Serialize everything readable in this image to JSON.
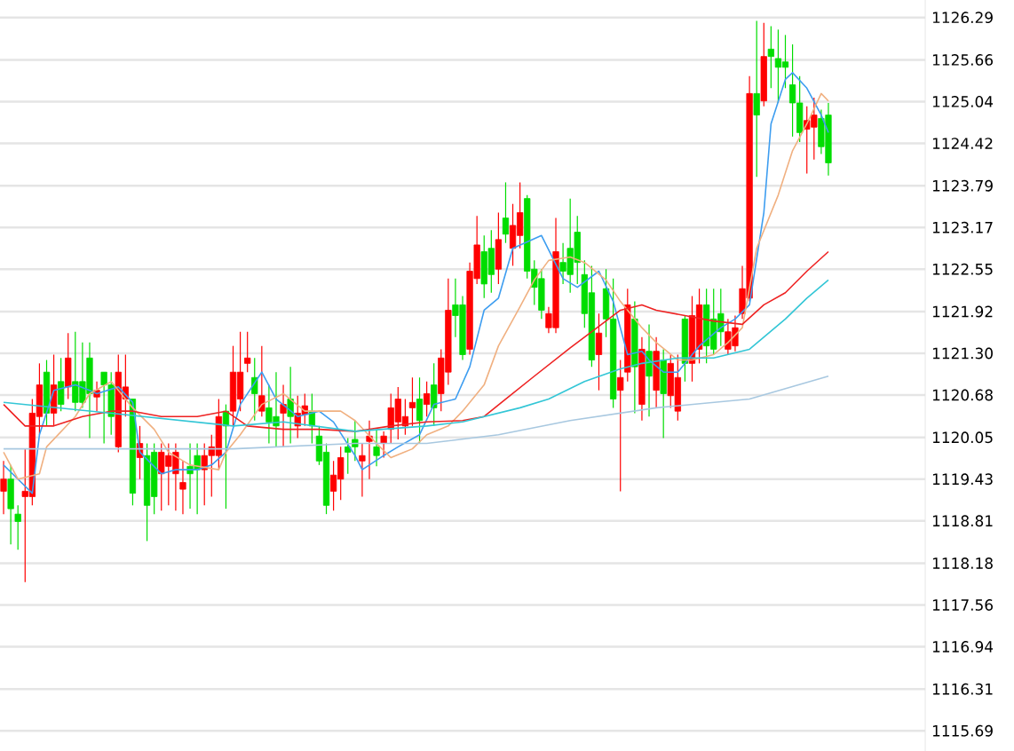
{
  "chart_data": {
    "type": "candlestick",
    "categories": [
      null,
      null,
      null,
      null,
      null,
      null,
      null,
      null,
      null,
      null,
      null,
      null,
      null,
      null,
      null,
      null,
      null,
      null,
      null,
      null,
      null,
      null,
      null,
      null,
      null,
      null,
      null,
      null,
      null,
      null,
      null,
      null,
      null,
      null,
      null,
      null,
      null,
      null,
      null,
      null,
      null,
      null,
      null,
      null,
      null,
      null,
      null,
      null,
      null,
      null,
      null,
      null,
      null,
      null,
      null,
      null,
      null,
      null,
      null,
      null,
      null,
      null,
      null,
      null,
      null,
      null,
      null,
      null,
      null,
      null,
      null,
      null,
      null,
      null,
      null,
      null,
      null,
      null,
      null,
      null,
      null,
      null,
      null,
      null,
      null,
      null,
      null,
      null,
      null,
      null,
      null,
      null,
      null,
      null,
      null,
      null,
      null,
      null,
      null,
      null,
      null,
      null,
      null,
      null,
      null,
      null,
      null,
      null,
      null,
      null,
      null,
      null,
      null,
      null,
      null,
      null,
      null,
      null,
      null,
      null,
      null,
      null,
      null,
      null,
      null,
      null,
      null,
      null,
      null
    ],
    "ohlc": [
      [
        1119.25,
        1119.7,
        1118.91,
        1119.43
      ],
      [
        1119.43,
        1119.64,
        1118.46,
        1118.99
      ],
      [
        1118.91,
        1119.04,
        1118.38,
        1118.8
      ],
      [
        1119.17,
        1119.88,
        1117.9,
        1119.25
      ],
      [
        1119.17,
        1120.62,
        1119.04,
        1120.41
      ],
      [
        1120.36,
        1121.15,
        1120.09,
        1120.83
      ],
      [
        1121.02,
        1121.2,
        1120.22,
        1120.41
      ],
      [
        1120.41,
        1121.28,
        1120.22,
        1120.83
      ],
      [
        1120.88,
        1121.23,
        1120.44,
        1120.54
      ],
      [
        1120.8,
        1121.6,
        1120.62,
        1121.23
      ],
      [
        1120.88,
        1121.62,
        1120.44,
        1120.57
      ],
      [
        1120.88,
        1121.46,
        1120.49,
        1120.57
      ],
      [
        1121.23,
        1121.46,
        1120.04,
        1120.7
      ],
      [
        1120.65,
        1120.88,
        1120.44,
        1120.75
      ],
      [
        1121.02,
        1121.02,
        1119.96,
        1120.83
      ],
      [
        1120.83,
        1121.02,
        1120.09,
        1120.36
      ],
      [
        1119.91,
        1121.28,
        1119.83,
        1121.02
      ],
      [
        1120.62,
        1121.28,
        1120.36,
        1120.8
      ],
      [
        1120.62,
        1120.62,
        1119.04,
        1119.22
      ],
      [
        1119.75,
        1120.22,
        1119.43,
        1119.96
      ],
      [
        1119.78,
        1119.96,
        1118.51,
        1119.04
      ],
      [
        1119.83,
        1119.96,
        1118.91,
        1119.17
      ],
      [
        1119.51,
        1119.96,
        1118.96,
        1119.83
      ],
      [
        1119.62,
        1119.96,
        1119.04,
        1119.78
      ],
      [
        1119.51,
        1119.96,
        1118.96,
        1119.83
      ],
      [
        1119.28,
        1119.7,
        1118.91,
        1119.38
      ],
      [
        1119.62,
        1119.96,
        1118.99,
        1119.51
      ],
      [
        1119.78,
        1119.96,
        1118.91,
        1119.57
      ],
      [
        1119.57,
        1119.96,
        1119.04,
        1119.78
      ],
      [
        1119.78,
        1120.09,
        1119.17,
        1119.91
      ],
      [
        1119.78,
        1120.62,
        1119.57,
        1120.36
      ],
      [
        1120.44,
        1120.54,
        1118.99,
        1120.22
      ],
      [
        1120.44,
        1121.41,
        1120.22,
        1121.02
      ],
      [
        1120.62,
        1121.62,
        1120.44,
        1121.02
      ],
      [
        1121.15,
        1121.62,
        1121.02,
        1121.23
      ],
      [
        1120.94,
        1121.23,
        1120.3,
        1120.7
      ],
      [
        1120.44,
        1121.41,
        1120.36,
        1120.67
      ],
      [
        1120.49,
        1120.83,
        1119.96,
        1120.28
      ],
      [
        1120.36,
        1121.02,
        1119.91,
        1120.22
      ],
      [
        1120.41,
        1120.83,
        1119.91,
        1120.54
      ],
      [
        1120.62,
        1121.1,
        1119.96,
        1120.36
      ],
      [
        1120.22,
        1120.67,
        1120.04,
        1120.41
      ],
      [
        1120.39,
        1120.7,
        1120.22,
        1120.52
      ],
      [
        1120.44,
        1120.7,
        1119.96,
        1120.22
      ],
      [
        1120.07,
        1120.22,
        1119.64,
        1119.7
      ],
      [
        1119.83,
        1119.96,
        1118.91,
        1119.04
      ],
      [
        1119.25,
        1119.7,
        1118.96,
        1119.49
      ],
      [
        1119.43,
        1119.91,
        1119.12,
        1119.75
      ],
      [
        1119.91,
        1120.04,
        1119.51,
        1119.83
      ],
      [
        1120.02,
        1120.3,
        1119.7,
        1119.91
      ],
      [
        1119.7,
        1119.96,
        1119.17,
        1119.78
      ],
      [
        1119.99,
        1120.3,
        1119.43,
        1120.07
      ],
      [
        1119.91,
        1120.17,
        1119.62,
        1119.78
      ],
      [
        1119.96,
        1120.14,
        1119.75,
        1120.07
      ],
      [
        1120.17,
        1120.7,
        1119.96,
        1120.49
      ],
      [
        1120.28,
        1120.8,
        1120.02,
        1120.62
      ],
      [
        1120.22,
        1120.62,
        1120.09,
        1120.36
      ],
      [
        1120.49,
        1120.94,
        1120.22,
        1120.57
      ],
      [
        1120.62,
        1120.94,
        1119.96,
        1120.3
      ],
      [
        1120.54,
        1120.88,
        1120.36,
        1120.7
      ],
      [
        1120.83,
        1121.15,
        1120.22,
        1120.49
      ],
      [
        1120.7,
        1121.36,
        1120.44,
        1121.23
      ],
      [
        1121.02,
        1122.41,
        1120.83,
        1121.94
      ],
      [
        1122.02,
        1122.41,
        1121.54,
        1121.86
      ],
      [
        1122.02,
        1122.15,
        1121.2,
        1121.28
      ],
      [
        1121.36,
        1122.65,
        1121.28,
        1122.52
      ],
      [
        1122.41,
        1123.34,
        1122.33,
        1122.91
      ],
      [
        1122.81,
        1123.05,
        1122.12,
        1122.33
      ],
      [
        1122.86,
        1123.13,
        1122.2,
        1122.47
      ],
      [
        1122.55,
        1123.39,
        1122.33,
        1122.99
      ],
      [
        1123.31,
        1123.84,
        1122.94,
        1123.07
      ],
      [
        1122.86,
        1123.52,
        1122.6,
        1123.2
      ],
      [
        1123.05,
        1123.84,
        1122.86,
        1123.39
      ],
      [
        1123.6,
        1123.65,
        1122.41,
        1122.52
      ],
      [
        1122.55,
        1122.68,
        1122.02,
        1122.28
      ],
      [
        1122.41,
        1122.55,
        1121.81,
        1121.94
      ],
      [
        1121.68,
        1121.99,
        1121.6,
        1121.89
      ],
      [
        1121.68,
        1123.31,
        1121.6,
        1122.81
      ],
      [
        1122.65,
        1122.94,
        1122.33,
        1122.52
      ],
      [
        1122.86,
        1123.6,
        1122.2,
        1122.47
      ],
      [
        1123.1,
        1123.34,
        1122.33,
        1122.65
      ],
      [
        1122.47,
        1122.68,
        1121.68,
        1121.89
      ],
      [
        1122.2,
        1122.6,
        1121.1,
        1121.2
      ],
      [
        1121.28,
        1121.89,
        1120.75,
        1121.6
      ],
      [
        1122.26,
        1122.55,
        1121.54,
        1121.81
      ],
      [
        1121.81,
        1122.41,
        1120.49,
        1120.62
      ],
      [
        1120.75,
        1121.2,
        1119.25,
        1120.94
      ],
      [
        1121.02,
        1122.26,
        1120.88,
        1122.02
      ],
      [
        1121.81,
        1122.07,
        1120.41,
        1121.1
      ],
      [
        1120.54,
        1121.54,
        1120.3,
        1121.36
      ],
      [
        1121.33,
        1121.73,
        1120.36,
        1120.96
      ],
      [
        1120.75,
        1121.54,
        1120.49,
        1121.33
      ],
      [
        1121.2,
        1121.36,
        1120.04,
        1120.7
      ],
      [
        1120.67,
        1121.28,
        1120.49,
        1121.15
      ],
      [
        1120.44,
        1121.28,
        1120.3,
        1120.94
      ],
      [
        1121.81,
        1121.86,
        1120.88,
        1121.15
      ],
      [
        1121.15,
        1122.15,
        1120.88,
        1121.86
      ],
      [
        1121.36,
        1122.26,
        1121.15,
        1122.02
      ],
      [
        1122.02,
        1122.26,
        1121.15,
        1121.41
      ],
      [
        1121.81,
        1122.26,
        1121.28,
        1121.36
      ],
      [
        1121.89,
        1122.26,
        1121.41,
        1121.62
      ],
      [
        1121.36,
        1121.81,
        1121.28,
        1121.62
      ],
      [
        1121.41,
        1121.86,
        1121.33,
        1121.68
      ],
      [
        1121.89,
        1122.6,
        1121.81,
        1122.26
      ],
      [
        1122.12,
        1125.42,
        1122.07,
        1125.16
      ],
      [
        1125.16,
        1126.24,
        1123.92,
        1124.84
      ],
      [
        1125.05,
        1126.21,
        1124.97,
        1125.71
      ],
      [
        1125.82,
        1126.16,
        1125.24,
        1125.71
      ],
      [
        1125.68,
        1126.11,
        1125.02,
        1125.55
      ],
      [
        1125.63,
        1126.03,
        1125.24,
        1125.55
      ],
      [
        1125.29,
        1125.89,
        1124.52,
        1125.02
      ],
      [
        1125.02,
        1125.42,
        1124.44,
        1124.58
      ],
      [
        1124.63,
        1124.97,
        1123.97,
        1124.76
      ],
      [
        1124.66,
        1125.1,
        1124.18,
        1124.84
      ],
      [
        1124.79,
        1124.92,
        1124.26,
        1124.37
      ],
      [
        1124.84,
        1125.02,
        1123.94,
        1124.13
      ],
      null,
      null,
      null,
      null,
      null,
      null,
      null,
      null,
      null,
      null,
      null,
      null,
      null
    ],
    "colors": [
      "#ff0000",
      "#00dd00",
      "#00dd00",
      "#ff0000",
      "#ff0000",
      "#ff0000",
      "#00dd00",
      "#ff0000",
      "#00dd00",
      "#ff0000",
      "#00dd00",
      "#00dd00",
      "#00dd00",
      "#ff0000",
      "#00dd00",
      "#00dd00",
      "#ff0000",
      "#ff0000",
      "#00dd00",
      "#ff0000",
      "#00dd00",
      "#00dd00",
      "#ff0000",
      "#ff0000",
      "#ff0000",
      "#ff0000",
      "#00dd00",
      "#00dd00",
      "#ff0000",
      "#ff0000",
      "#ff0000",
      "#00dd00",
      "#ff0000",
      "#ff0000",
      "#ff0000",
      "#00dd00",
      "#ff0000",
      "#00dd00",
      "#00dd00",
      "#ff0000",
      "#00dd00",
      "#ff0000",
      "#ff0000",
      "#00dd00",
      "#00dd00",
      "#00dd00",
      "#ff0000",
      "#ff0000",
      "#00dd00",
      "#00dd00",
      "#ff0000",
      "#ff0000",
      "#00dd00",
      "#ff0000",
      "#ff0000",
      "#ff0000",
      "#ff0000",
      "#ff0000",
      "#00dd00",
      "#ff0000",
      "#00dd00",
      "#ff0000",
      "#ff0000",
      "#00dd00",
      "#00dd00",
      "#ff0000",
      "#ff0000",
      "#00dd00",
      "#00dd00",
      "#ff0000",
      "#00dd00",
      "#ff0000",
      "#ff0000",
      "#00dd00",
      "#00dd00",
      "#00dd00",
      "#ff0000",
      "#ff0000",
      "#00dd00",
      "#00dd00",
      "#00dd00",
      "#00dd00",
      "#00dd00",
      "#ff0000",
      "#00dd00",
      "#00dd00",
      "#ff0000",
      "#ff0000",
      "#00dd00",
      "#ff0000",
      "#00dd00",
      "#ff0000",
      "#00dd00",
      "#ff0000",
      "#ff0000",
      "#00dd00",
      "#ff0000",
      "#ff0000",
      "#00dd00",
      "#00dd00",
      "#00dd00",
      "#ff0000",
      "#ff0000",
      "#ff0000",
      "#ff0000",
      "#00dd00",
      "#ff0000",
      "#00dd00",
      "#00dd00",
      "#00dd00",
      "#00dd00",
      "#00dd00",
      "#ff0000",
      "#ff0000",
      "#00dd00",
      "#00dd00",
      null,
      null,
      null,
      null,
      null,
      null,
      null,
      null,
      null,
      null,
      null,
      null,
      null
    ],
    "series": [
      {
        "type": "line",
        "color": "#3d9df0",
        "values": [
          1119.64,
          null,
          1119.43,
          null,
          1119.22,
          1120.09,
          null,
          1120.75,
          null,
          null,
          1120.83,
          null,
          1120.75,
          1120.7,
          null,
          null,
          1120.8,
          null,
          1120.57,
          1119.83,
          null,
          null,
          1119.51,
          null,
          1119.57,
          null,
          null,
          1119.57,
          null,
          1119.64,
          null,
          1119.83,
          null,
          1120.54,
          null,
          null,
          1121.02,
          null,
          1120.62,
          null,
          null,
          1120.36,
          null,
          null,
          1120.44,
          null,
          1120.28,
          null,
          null,
          1119.78,
          1119.57,
          null,
          null,
          1119.78,
          null,
          1119.91,
          null,
          null,
          1120.09,
          null,
          1120.54,
          null,
          null,
          1120.62,
          null,
          1121.1,
          null,
          1121.94,
          null,
          1122.12,
          null,
          1122.86,
          null,
          null,
          null,
          1123.05,
          null,
          null,
          1122.41,
          null,
          1122.28,
          null,
          null,
          1122.52,
          null,
          1122.07,
          null,
          1121.28,
          null,
          1121.33,
          1121.2,
          null,
          1121.02,
          null,
          1121.02,
          null,
          1121.28,
          1121.41,
          null,
          null,
          1121.68,
          null,
          1121.81,
          null,
          1122.02,
          null,
          1123.39,
          1124.71,
          null,
          1125.37,
          1125.47,
          null,
          1125.24,
          null,
          1124.84,
          1124.58,
          null,
          null,
          null,
          null,
          null,
          null,
          null,
          null,
          null,
          null,
          null,
          null,
          null
        ]
      },
      {
        "type": "line",
        "color": "#f0b080",
        "values": [
          1119.83,
          null,
          1119.43,
          null,
          null,
          1119.51,
          1119.91,
          null,
          null,
          null,
          1120.36,
          null,
          1120.7,
          null,
          null,
          1120.88,
          null,
          null,
          1120.49,
          null,
          null,
          1120.17,
          null,
          1119.83,
          null,
          null,
          1119.64,
          null,
          null,
          null,
          1119.57,
          1119.83,
          null,
          1120.09,
          null,
          null,
          1120.54,
          null,
          null,
          1120.7,
          null,
          null,
          1120.44,
          null,
          null,
          null,
          null,
          1120.44,
          null,
          1120.3,
          null,
          null,
          1119.96,
          null,
          1119.75,
          null,
          null,
          1119.88,
          null,
          1120.09,
          null,
          null,
          1120.22,
          null,
          1120.44,
          null,
          null,
          1120.83,
          null,
          1121.41,
          null,
          null,
          1121.99,
          null,
          1122.39,
          null,
          1122.68,
          null,
          null,
          1122.73,
          null,
          1122.65,
          null,
          null,
          1122.39,
          null,
          1122.07,
          null,
          null,
          1121.68,
          null,
          1121.46,
          null,
          null,
          1121.2,
          null,
          1121.2,
          null,
          null,
          1121.28,
          null,
          1121.46,
          null,
          1121.68,
          null,
          1122.86,
          null,
          null,
          1123.65,
          null,
          1124.31,
          null,
          1124.71,
          null,
          1125.16,
          1125.05,
          null,
          null,
          null,
          null,
          null,
          null,
          null,
          null,
          null,
          null,
          null,
          null,
          null
        ]
      },
      {
        "type": "line",
        "color": "#ee2222",
        "values": [
          1120.54,
          null,
          null,
          1120.22,
          null,
          null,
          null,
          1120.22,
          null,
          null,
          null,
          1120.36,
          null,
          null,
          null,
          1120.44,
          null,
          null,
          1120.44,
          null,
          null,
          null,
          1120.36,
          null,
          null,
          null,
          null,
          1120.36,
          null,
          null,
          null,
          1120.44,
          null,
          null,
          1120.22,
          null,
          null,
          null,
          null,
          1120.17,
          null,
          null,
          null,
          null,
          1120.17,
          null,
          null,
          null,
          null,
          1120.14,
          null,
          null,
          null,
          null,
          1120.22,
          null,
          null,
          null,
          null,
          1120.28,
          null,
          null,
          null,
          null,
          1120.3,
          null,
          null,
          1120.36,
          null,
          null,
          1120.62,
          null,
          null,
          null,
          1120.96,
          null,
          null,
          null,
          null,
          1121.38,
          null,
          null,
          null,
          1121.7,
          null,
          null,
          1121.94,
          null,
          null,
          1122.02,
          null,
          1121.94,
          null,
          null,
          null,
          1121.86,
          null,
          null,
          null,
          1121.78,
          null,
          null,
          null,
          1121.73,
          null,
          null,
          1122.02,
          null,
          null,
          1122.2,
          null,
          null,
          1122.52,
          null,
          null,
          1122.81,
          null,
          null,
          null,
          null,
          null,
          null,
          null,
          null,
          null,
          null,
          null,
          null,
          null
        ]
      },
      {
        "type": "line",
        "color": "#33c6d6",
        "values": [
          1120.57,
          null,
          null,
          null,
          null,
          null,
          null,
          null,
          null,
          null,
          null,
          null,
          null,
          null,
          null,
          1120.41,
          null,
          null,
          null,
          null,
          null,
          null,
          null,
          null,
          null,
          null,
          null,
          null,
          null,
          null,
          null,
          null,
          1120.22,
          null,
          null,
          null,
          null,
          null,
          null,
          1120.28,
          null,
          null,
          null,
          null,
          null,
          null,
          null,
          null,
          null,
          1120.14,
          null,
          null,
          null,
          null,
          null,
          null,
          null,
          null,
          null,
          1120.22,
          null,
          null,
          null,
          null,
          1120.28,
          null,
          null,
          null,
          null,
          null,
          null,
          null,
          1120.49,
          null,
          null,
          null,
          1120.62,
          null,
          null,
          null,
          null,
          1120.88,
          null,
          null,
          null,
          null,
          1121.07,
          null,
          null,
          1121.15,
          null,
          null,
          null,
          null,
          1121.23,
          null,
          null,
          null,
          null,
          1121.23,
          null,
          null,
          null,
          null,
          1121.36,
          null,
          null,
          null,
          null,
          1121.81,
          null,
          null,
          1122.12,
          null,
          null,
          1122.39,
          null,
          null,
          null,
          null,
          null,
          null,
          null,
          null,
          null,
          null,
          null,
          null,
          null
        ]
      },
      {
        "type": "line",
        "color": "#a8c8e0",
        "values": [
          1119.88,
          null,
          null,
          null,
          null,
          null,
          null,
          null,
          null,
          null,
          null,
          null,
          null,
          null,
          null,
          null,
          null,
          null,
          null,
          null,
          null,
          null,
          null,
          null,
          null,
          null,
          null,
          null,
          null,
          null,
          null,
          null,
          1119.88,
          null,
          null,
          null,
          null,
          null,
          null,
          null,
          null,
          null,
          null,
          null,
          null,
          null,
          null,
          null,
          null,
          1119.96,
          null,
          null,
          null,
          null,
          null,
          null,
          null,
          null,
          null,
          1119.96,
          null,
          null,
          null,
          null,
          null,
          null,
          null,
          null,
          null,
          1120.09,
          null,
          null,
          null,
          null,
          null,
          null,
          null,
          null,
          null,
          1120.3,
          null,
          null,
          null,
          null,
          null,
          null,
          null,
          null,
          null,
          null,
          null,
          1120.49,
          null,
          null,
          null,
          null,
          null,
          null,
          null,
          null,
          null,
          null,
          null,
          null,
          1120.62,
          null,
          null,
          null,
          null,
          null,
          null,
          null,
          null,
          null,
          null,
          1120.96,
          null,
          null,
          null,
          null,
          null,
          null,
          null,
          null,
          null,
          null,
          null,
          null,
          null
        ]
      }
    ],
    "ylim": [
      1115.39,
      1126.55
    ],
    "yticks": [
      1115.69,
      1116.31,
      1116.94,
      1117.56,
      1118.18,
      1118.81,
      1119.43,
      1120.05,
      1120.68,
      {
        "value": 1121.3,
        "label": "1121.30"
      },
      1121.92,
      1122.55,
      1123.17,
      1123.79,
      1124.42,
      1125.04,
      1125.66,
      1126.29
    ],
    "grid": "y",
    "tick_labels": "y"
  }
}
